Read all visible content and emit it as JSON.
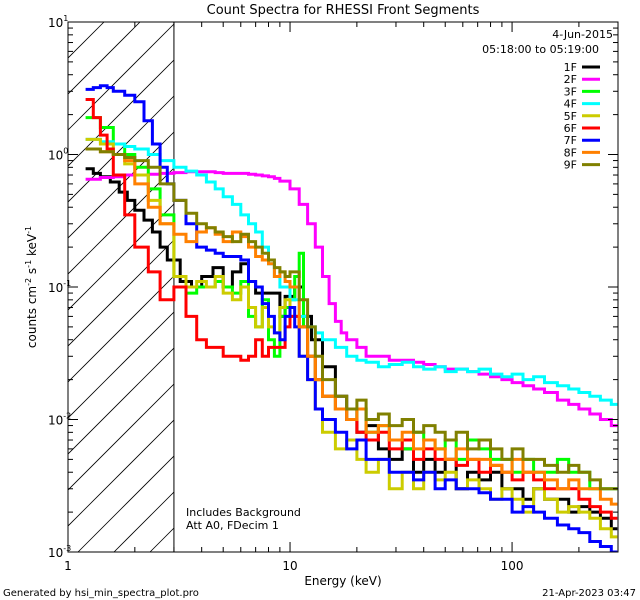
{
  "chart_data": {
    "type": "line",
    "title": "Count Spectra for RHESSI Front Segments",
    "xlabel": "Energy (keV)",
    "ylabel_parts": [
      "counts cm",
      "-2",
      " s",
      "-1",
      " keV",
      "-1"
    ],
    "xscale": "log",
    "yscale": "log",
    "xlim": [
      1,
      300
    ],
    "ylim": [
      0.001,
      10
    ],
    "x_ticks": [
      {
        "value": 1,
        "label": "1"
      },
      {
        "value": 10,
        "label": "10"
      },
      {
        "value": 100,
        "label": "100"
      }
    ],
    "y_ticks": [
      {
        "value": 10,
        "base": "10",
        "exp": "1"
      },
      {
        "value": 1,
        "base": "10",
        "exp": "0"
      },
      {
        "value": 0.1,
        "base": "10",
        "exp": "-1"
      },
      {
        "value": 0.01,
        "base": "10",
        "exp": "-2"
      },
      {
        "value": 0.001,
        "base": "10",
        "exp": "-3"
      }
    ],
    "shaded_region": {
      "x_from": 1,
      "x_to": 3
    },
    "vertical_marker_x": 3,
    "legend_position": "top-right",
    "series": [
      {
        "name": "1F",
        "color": "#000000",
        "x": [
          1.2,
          1.3,
          1.4,
          1.55,
          1.7,
          1.85,
          2.0,
          2.2,
          2.4,
          2.6,
          2.8,
          3.2,
          3.6,
          4.0,
          4.5,
          5.0,
          5.5,
          6.0,
          6.5,
          7.0,
          8.0,
          9.0,
          9.5,
          10.5,
          11.5,
          12.5,
          14,
          16,
          18,
          20,
          22,
          25,
          28,
          32,
          36,
          40,
          45,
          50,
          56,
          63,
          71,
          80,
          90,
          100,
          112,
          125,
          140,
          160,
          180,
          200,
          224,
          250,
          280
        ],
        "y": [
          0.78,
          0.72,
          0.68,
          0.62,
          0.52,
          0.45,
          0.38,
          0.32,
          0.26,
          0.2,
          0.16,
          0.11,
          0.1,
          0.12,
          0.14,
          0.1,
          0.13,
          0.15,
          0.11,
          0.09,
          0.09,
          0.06,
          0.085,
          0.1,
          0.06,
          0.04,
          0.025,
          0.015,
          0.012,
          0.008,
          0.009,
          0.006,
          0.005,
          0.006,
          0.004,
          0.005,
          0.004,
          0.005,
          0.003,
          0.004,
          0.0035,
          0.004,
          0.003,
          0.003,
          0.0025,
          0.003,
          0.0025,
          0.0025,
          0.002,
          0.0022,
          0.002,
          0.0018,
          0.0015
        ]
      },
      {
        "name": "2F",
        "color": "#ff00ff",
        "x": [
          1.2,
          1.4,
          1.6,
          1.8,
          2.0,
          2.3,
          2.6,
          3.0,
          3.4,
          3.8,
          4.2,
          4.6,
          5.0,
          5.5,
          6.0,
          6.5,
          7.0,
          7.5,
          8.0,
          8.5,
          9.0,
          10,
          11,
          12,
          13,
          14,
          15,
          16,
          17,
          18,
          20,
          22,
          25,
          28,
          32,
          36,
          40,
          45,
          50,
          56,
          63,
          71,
          80,
          90,
          100,
          112,
          125,
          140,
          160,
          180,
          200,
          224,
          250,
          280
        ],
        "y": [
          0.65,
          0.67,
          0.68,
          0.7,
          0.7,
          0.71,
          0.72,
          0.73,
          0.74,
          0.74,
          0.74,
          0.73,
          0.72,
          0.72,
          0.72,
          0.71,
          0.7,
          0.69,
          0.68,
          0.66,
          0.63,
          0.55,
          0.42,
          0.3,
          0.2,
          0.12,
          0.075,
          0.055,
          0.045,
          0.04,
          0.035,
          0.03,
          0.03,
          0.028,
          0.028,
          0.027,
          0.026,
          0.025,
          0.024,
          0.024,
          0.023,
          0.022,
          0.021,
          0.02,
          0.019,
          0.018,
          0.017,
          0.016,
          0.014,
          0.013,
          0.012,
          0.011,
          0.01,
          0.009
        ]
      },
      {
        "name": "3F",
        "color": "#00ff00",
        "x": [
          1.2,
          1.4,
          1.6,
          1.8,
          2.0,
          2.3,
          2.6,
          3.0,
          3.4,
          3.8,
          4.2,
          4.6,
          5.0,
          5.5,
          6.0,
          6.5,
          7.0,
          7.5,
          8.0,
          8.5,
          9.0,
          9.5,
          10,
          10.5,
          11,
          11.5,
          12,
          13,
          14,
          16,
          18,
          20,
          22,
          25,
          28,
          32,
          36,
          40,
          45,
          50,
          56,
          63,
          71,
          80,
          90,
          100,
          112,
          125,
          140,
          160,
          180,
          200,
          224,
          250,
          280
        ],
        "y": [
          1.9,
          1.6,
          1.2,
          1.0,
          0.8,
          0.55,
          0.35,
          0.12,
          0.09,
          0.1,
          0.1,
          0.11,
          0.1,
          0.09,
          0.11,
          0.06,
          0.05,
          0.08,
          0.04,
          0.03,
          0.06,
          0.07,
          0.08,
          0.12,
          0.18,
          0.05,
          0.03,
          0.02,
          0.015,
          0.012,
          0.01,
          0.012,
          0.008,
          0.009,
          0.007,
          0.006,
          0.008,
          0.007,
          0.006,
          0.007,
          0.005,
          0.007,
          0.006,
          0.005,
          0.005,
          0.004,
          0.005,
          0.004,
          0.004,
          0.005,
          0.004,
          0.004,
          0.003,
          0.003,
          0.003
        ]
      },
      {
        "name": "4F",
        "color": "#00ffff",
        "x": [
          1.2,
          1.4,
          1.6,
          1.8,
          2.0,
          2.3,
          2.6,
          3.0,
          3.4,
          3.8,
          4.2,
          4.6,
          5.0,
          5.5,
          6.0,
          6.5,
          7.0,
          7.5,
          8.0,
          8.5,
          9.0,
          10,
          11,
          12,
          13,
          14,
          16,
          18,
          20,
          22,
          25,
          28,
          32,
          36,
          40,
          45,
          50,
          56,
          63,
          71,
          80,
          90,
          100,
          112,
          125,
          140,
          160,
          180,
          200,
          224,
          250,
          280
        ],
        "y": [
          1.3,
          1.25,
          1.2,
          1.15,
          1.1,
          1.0,
          0.9,
          0.8,
          0.75,
          0.7,
          0.62,
          0.55,
          0.48,
          0.42,
          0.35,
          0.3,
          0.26,
          0.2,
          0.15,
          0.12,
          0.1,
          0.08,
          0.06,
          0.05,
          0.045,
          0.04,
          0.035,
          0.03,
          0.028,
          0.027,
          0.025,
          0.026,
          0.027,
          0.025,
          0.024,
          0.025,
          0.023,
          0.024,
          0.023,
          0.024,
          0.022,
          0.021,
          0.022,
          0.02,
          0.021,
          0.019,
          0.018,
          0.017,
          0.016,
          0.015,
          0.014,
          0.013
        ]
      },
      {
        "name": "5F",
        "color": "#cccc00",
        "x": [
          1.2,
          1.4,
          1.6,
          1.8,
          2.0,
          2.3,
          2.6,
          3.0,
          3.4,
          3.8,
          4.2,
          4.6,
          5.0,
          5.5,
          6.0,
          6.5,
          7.0,
          7.5,
          8.0,
          8.5,
          9.0,
          9.5,
          10,
          11,
          12,
          13,
          14,
          16,
          18,
          20,
          22,
          25,
          28,
          32,
          36,
          40,
          45,
          50,
          56,
          63,
          71,
          80,
          90,
          100,
          112,
          125,
          140,
          160,
          180,
          200,
          224,
          250,
          280
        ],
        "y": [
          1.3,
          1.2,
          1.0,
          0.85,
          0.7,
          0.45,
          0.3,
          0.12,
          0.1,
          0.11,
          0.1,
          0.12,
          0.09,
          0.08,
          0.1,
          0.07,
          0.05,
          0.07,
          0.05,
          0.045,
          0.07,
          0.08,
          0.06,
          0.03,
          0.02,
          0.012,
          0.008,
          0.006,
          0.007,
          0.005,
          0.004,
          0.005,
          0.003,
          0.004,
          0.003,
          0.004,
          0.0035,
          0.004,
          0.003,
          0.0035,
          0.003,
          0.0025,
          0.003,
          0.0025,
          0.002,
          0.003,
          0.0025,
          0.002,
          0.0022,
          0.002,
          0.0018,
          0.0015,
          0.0013
        ]
      },
      {
        "name": "6F",
        "color": "#ff0000",
        "x": [
          1.2,
          1.3,
          1.4,
          1.5,
          1.6,
          1.8,
          2.0,
          2.3,
          2.6,
          3.0,
          3.4,
          3.8,
          4.2,
          4.6,
          5.0,
          5.5,
          6.0,
          6.5,
          7.0,
          7.5,
          8.0,
          8.5,
          9.0,
          9.5,
          10,
          11,
          12,
          13,
          14,
          16,
          18,
          20,
          22,
          25,
          28,
          32,
          36,
          40,
          45,
          50,
          56,
          63,
          71,
          80,
          90,
          100,
          112,
          125,
          140,
          160,
          180,
          200,
          224,
          250,
          280
        ],
        "y": [
          2.6,
          1.9,
          1.4,
          1.1,
          0.7,
          0.35,
          0.2,
          0.13,
          0.08,
          0.1,
          0.06,
          0.04,
          0.035,
          0.035,
          0.03,
          0.03,
          0.028,
          0.03,
          0.04,
          0.03,
          0.035,
          0.035,
          0.035,
          0.05,
          0.06,
          0.05,
          0.03,
          0.02,
          0.015,
          0.012,
          0.01,
          0.008,
          0.007,
          0.008,
          0.006,
          0.007,
          0.005,
          0.006,
          0.005,
          0.005,
          0.0045,
          0.005,
          0.004,
          0.0045,
          0.004,
          0.0035,
          0.004,
          0.0035,
          0.003,
          0.003,
          0.003,
          0.0025,
          0.0022,
          0.002,
          0.0018
        ]
      },
      {
        "name": "7F",
        "color": "#0000ff",
        "x": [
          1.2,
          1.3,
          1.4,
          1.5,
          1.6,
          1.8,
          2.0,
          2.2,
          2.4,
          2.6,
          2.8,
          3.0,
          3.4,
          3.8,
          4.2,
          4.6,
          5.0,
          5.5,
          6.0,
          6.5,
          7.0,
          7.5,
          8.0,
          8.5,
          9.0,
          9.5,
          10,
          10.5,
          11,
          12,
          13,
          14,
          16,
          18,
          20,
          22,
          25,
          28,
          32,
          36,
          40,
          45,
          50,
          56,
          63,
          71,
          80,
          90,
          100,
          112,
          125,
          140,
          160,
          180,
          200,
          224,
          250,
          280
        ],
        "y": [
          3.1,
          3.2,
          3.3,
          3.2,
          3.0,
          2.8,
          2.5,
          1.8,
          1.2,
          0.8,
          0.6,
          0.45,
          0.3,
          0.2,
          0.19,
          0.18,
          0.17,
          0.17,
          0.16,
          0.11,
          0.1,
          0.075,
          0.06,
          0.045,
          0.04,
          0.06,
          0.07,
          0.05,
          0.03,
          0.02,
          0.012,
          0.01,
          0.008,
          0.006,
          0.007,
          0.005,
          0.005,
          0.004,
          0.004,
          0.0035,
          0.004,
          0.003,
          0.0035,
          0.003,
          0.003,
          0.0028,
          0.0025,
          0.0025,
          0.002,
          0.0022,
          0.002,
          0.0018,
          0.0016,
          0.0015,
          0.0014,
          0.0012,
          0.0011,
          0.001
        ]
      },
      {
        "name": "8F",
        "color": "#ff8000",
        "x": [
          1.2,
          1.4,
          1.6,
          1.8,
          2.0,
          2.3,
          2.6,
          3.0,
          3.4,
          3.8,
          4.2,
          4.6,
          5.0,
          5.5,
          6.0,
          6.5,
          7.0,
          7.5,
          8.0,
          8.5,
          9.0,
          9.5,
          10,
          11,
          12,
          13,
          14,
          16,
          18,
          20,
          22,
          25,
          28,
          32,
          36,
          40,
          45,
          50,
          56,
          63,
          71,
          80,
          90,
          100,
          112,
          125,
          140,
          160,
          180,
          200,
          224,
          250,
          280
        ],
        "y": [
          1.1,
          1.05,
          1.0,
          0.9,
          0.6,
          0.4,
          0.3,
          0.25,
          0.22,
          0.26,
          0.28,
          0.25,
          0.22,
          0.26,
          0.24,
          0.2,
          0.17,
          0.16,
          0.15,
          0.12,
          0.13,
          0.11,
          0.1,
          0.05,
          0.03,
          0.02,
          0.015,
          0.012,
          0.01,
          0.012,
          0.008,
          0.009,
          0.007,
          0.008,
          0.006,
          0.007,
          0.006,
          0.005,
          0.006,
          0.005,
          0.005,
          0.0045,
          0.004,
          0.005,
          0.004,
          0.004,
          0.0035,
          0.003,
          0.0035,
          0.003,
          0.003,
          0.0025,
          0.0023
        ]
      },
      {
        "name": "9F",
        "color": "#808000",
        "x": [
          1.2,
          1.4,
          1.6,
          1.8,
          2.0,
          2.3,
          2.6,
          3.0,
          3.4,
          3.8,
          4.2,
          4.6,
          5.0,
          5.5,
          6.0,
          6.5,
          7.0,
          7.5,
          8.0,
          8.5,
          9.0,
          9.5,
          10,
          11,
          12,
          13,
          14,
          16,
          18,
          20,
          22,
          25,
          28,
          32,
          36,
          40,
          45,
          50,
          56,
          63,
          71,
          80,
          90,
          100,
          112,
          125,
          140,
          160,
          180,
          200,
          224,
          250,
          280
        ],
        "y": [
          1.1,
          1.05,
          1.0,
          0.95,
          0.9,
          0.8,
          0.6,
          0.45,
          0.36,
          0.3,
          0.28,
          0.26,
          0.24,
          0.22,
          0.25,
          0.22,
          0.2,
          0.18,
          0.16,
          0.14,
          0.13,
          0.12,
          0.13,
          0.08,
          0.05,
          0.03,
          0.02,
          0.015,
          0.012,
          0.014,
          0.01,
          0.011,
          0.009,
          0.01,
          0.008,
          0.009,
          0.008,
          0.007,
          0.008,
          0.006,
          0.007,
          0.006,
          0.005,
          0.006,
          0.005,
          0.005,
          0.0045,
          0.004,
          0.0045,
          0.004,
          0.0035,
          0.003,
          0.003
        ]
      }
    ]
  },
  "annotations": {
    "date": "4-Jun-2015",
    "time_range": "05:18:00 to 05:19:00",
    "background_note": "Includes Background",
    "att_note": "Att A0, FDecim 1"
  },
  "footer": {
    "generated_by": "Generated by hsi_min_spectra_plot.pro",
    "timestamp": "21-Apr-2023 03:47"
  }
}
